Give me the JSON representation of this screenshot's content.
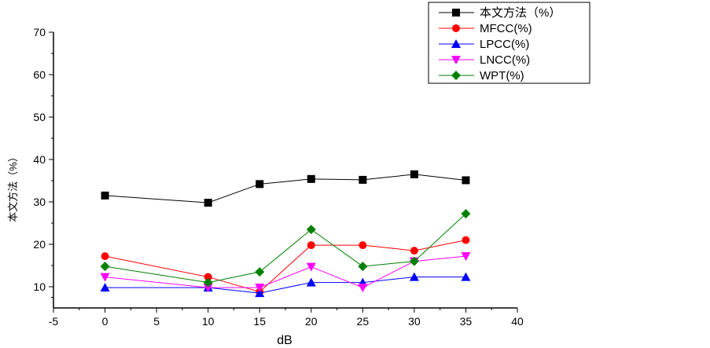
{
  "chart_data": {
    "type": "line",
    "title": "",
    "xlabel": "dB",
    "ylabel": "本文方法（%）",
    "xlim": [
      -5,
      40
    ],
    "ylim": [
      5,
      70
    ],
    "xticks": [
      -5,
      0,
      5,
      10,
      15,
      20,
      25,
      30,
      35,
      40
    ],
    "yticks": [
      10,
      20,
      30,
      40,
      50,
      60,
      70
    ],
    "x": [
      0,
      10,
      15,
      20,
      25,
      30,
      35
    ],
    "grid": false,
    "legend_position": "top-right",
    "series": [
      {
        "name": "本文方法（%）",
        "color": "#000000",
        "marker": "square",
        "values": [
          31.5,
          29.8,
          34.2,
          35.4,
          35.2,
          36.5,
          35.1
        ]
      },
      {
        "name": "MFCC(%)",
        "color": "#ff0000",
        "marker": "circle",
        "values": [
          17.2,
          12.3,
          8.8,
          19.8,
          19.8,
          18.5,
          21.0
        ]
      },
      {
        "name": "LPCC(%)",
        "color": "#0000ff",
        "marker": "triangle-up",
        "values": [
          9.8,
          9.8,
          8.5,
          11.0,
          11.0,
          12.3,
          12.3
        ]
      },
      {
        "name": "LNCC(%)",
        "color": "#ff00ff",
        "marker": "triangle-down",
        "values": [
          12.3,
          9.8,
          9.8,
          14.7,
          9.8,
          16.0,
          17.2
        ]
      },
      {
        "name": "WPT(%)",
        "color": "#008000",
        "marker": "diamond",
        "values": [
          14.8,
          11.0,
          13.5,
          23.5,
          14.8,
          16.0,
          27.2
        ]
      }
    ]
  }
}
